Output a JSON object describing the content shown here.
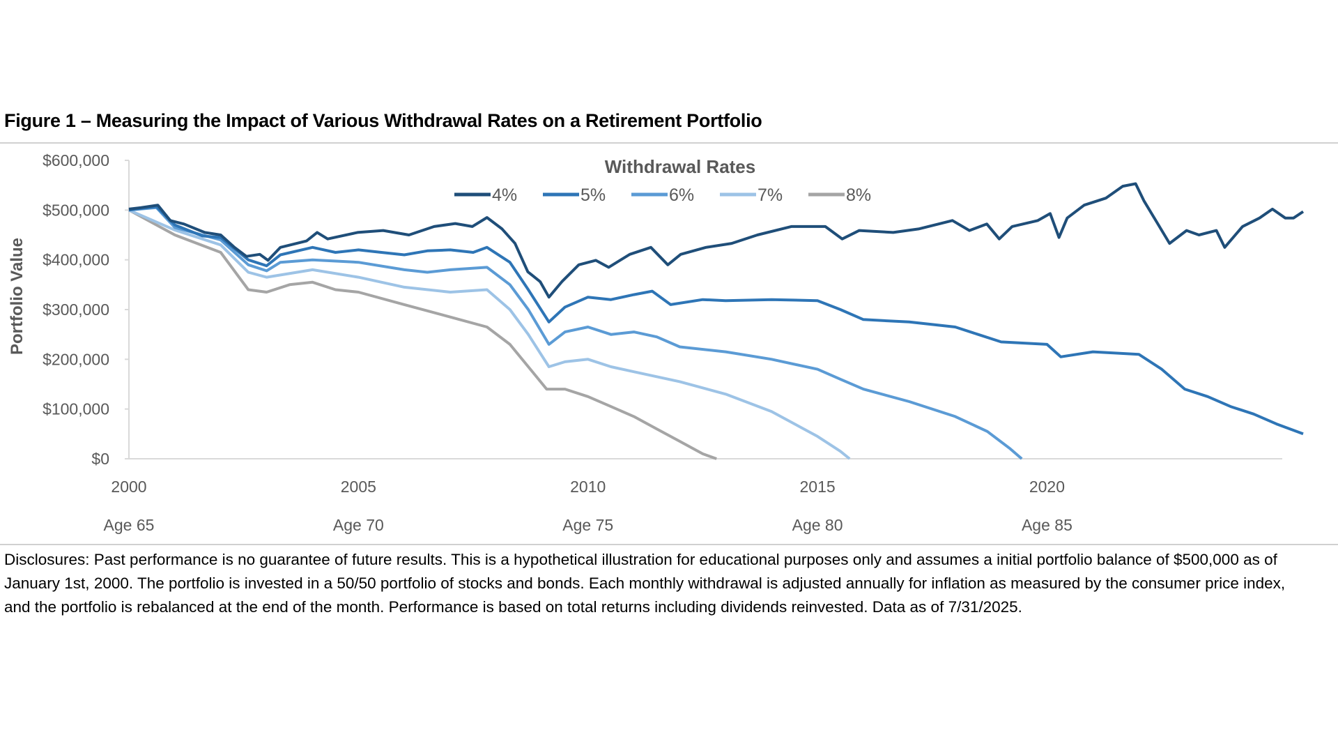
{
  "title": "Figure 1 – Measuring the Impact of Various Withdrawal Rates on a Retirement Portfolio",
  "disclosures": "Disclosures: Past performance is no guarantee of future results. This is a hypothetical illustration for educational purposes only and assumes a initial portfolio balance of $500,000 as of January 1st, 2000. The portfolio is invested in a 50/50 portfolio of stocks and bonds. Each monthly withdrawal is adjusted annually for inflation as measured by the consumer price index, and the portfolio is rebalanced at the end of the month. Performance is based on total returns including dividends reinvested. Data as of 7/31/2025.",
  "chart_data": {
    "type": "line",
    "ylabel": "Portfolio Value",
    "legend_title": "Withdrawal Rates",
    "legend_placement": "top-center",
    "grid": false,
    "xlim": [
      2000,
      2025.58
    ],
    "ylim": [
      0,
      600000
    ],
    "y_ticks": [
      "$0",
      "$100,000",
      "$200,000",
      "$300,000",
      "$400,000",
      "$500,000",
      "$600,000"
    ],
    "x_ticks": [
      {
        "value": 2000,
        "label": "2000",
        "age": "Age 65"
      },
      {
        "value": 2005,
        "label": "2005",
        "age": "Age 70"
      },
      {
        "value": 2010,
        "label": "2010",
        "age": "Age 75"
      },
      {
        "value": 2015,
        "label": "2015",
        "age": "Age 80"
      },
      {
        "value": 2020,
        "label": "2020",
        "age": "Age 85"
      }
    ],
    "series": [
      {
        "name": "4%",
        "color": "#1f4e79",
        "points": [
          [
            2000,
            502000
          ],
          [
            2000.26,
            505000
          ],
          [
            2000.63,
            510000
          ],
          [
            2000.9,
            479000
          ],
          [
            2001.2,
            472000
          ],
          [
            2001.65,
            455000
          ],
          [
            2002,
            450000
          ],
          [
            2002.3,
            425000
          ],
          [
            2002.56,
            407000
          ],
          [
            2002.85,
            411000
          ],
          [
            2003.03,
            399000
          ],
          [
            2003.3,
            425000
          ],
          [
            2003.87,
            438000
          ],
          [
            2004.1,
            455000
          ],
          [
            2004.33,
            442000
          ],
          [
            2004.98,
            455000
          ],
          [
            2005.54,
            459000
          ],
          [
            2006.1,
            450000
          ],
          [
            2006.65,
            467000
          ],
          [
            2007.11,
            473000
          ],
          [
            2007.48,
            467000
          ],
          [
            2007.8,
            485000
          ],
          [
            2008.13,
            462000
          ],
          [
            2008.41,
            433000
          ],
          [
            2008.69,
            376000
          ],
          [
            2008.96,
            356000
          ],
          [
            2009.15,
            325000
          ],
          [
            2009.43,
            356000
          ],
          [
            2009.8,
            390000
          ],
          [
            2010.17,
            399000
          ],
          [
            2010.45,
            385000
          ],
          [
            2010.91,
            411000
          ],
          [
            2011.37,
            425000
          ],
          [
            2011.74,
            390000
          ],
          [
            2012.02,
            411000
          ],
          [
            2012.57,
            425000
          ],
          [
            2013.13,
            433000
          ],
          [
            2013.69,
            450000
          ],
          [
            2014.43,
            467000
          ],
          [
            2015.17,
            467000
          ],
          [
            2015.54,
            442000
          ],
          [
            2015.91,
            459000
          ],
          [
            2016.65,
            455000
          ],
          [
            2017.2,
            462000
          ],
          [
            2017.94,
            479000
          ],
          [
            2018.31,
            459000
          ],
          [
            2018.69,
            472000
          ],
          [
            2018.96,
            442000
          ],
          [
            2019.24,
            467000
          ],
          [
            2019.8,
            479000
          ],
          [
            2020.07,
            493000
          ],
          [
            2020.26,
            445000
          ],
          [
            2020.44,
            484000
          ],
          [
            2020.81,
            510000
          ],
          [
            2021.28,
            524000
          ],
          [
            2021.65,
            548000
          ],
          [
            2021.93,
            553000
          ],
          [
            2022.11,
            519000
          ],
          [
            2022.39,
            476000
          ],
          [
            2022.67,
            433000
          ],
          [
            2023.04,
            459000
          ],
          [
            2023.31,
            450000
          ],
          [
            2023.69,
            459000
          ],
          [
            2023.87,
            425000
          ],
          [
            2024.26,
            467000
          ],
          [
            2024.63,
            484000
          ],
          [
            2024.91,
            502000
          ],
          [
            2025.19,
            484000
          ],
          [
            2025.37,
            484000
          ],
          [
            2025.58,
            497000
          ]
        ]
      },
      {
        "name": "5%",
        "color": "#2e75b6",
        "points": [
          [
            2000,
            500000
          ],
          [
            2000.6,
            507000
          ],
          [
            2001,
            470000
          ],
          [
            2001.6,
            448000
          ],
          [
            2002,
            445000
          ],
          [
            2002.6,
            400000
          ],
          [
            2003,
            388000
          ],
          [
            2003.3,
            410000
          ],
          [
            2004,
            425000
          ],
          [
            2004.5,
            415000
          ],
          [
            2005,
            420000
          ],
          [
            2005.5,
            415000
          ],
          [
            2006,
            410000
          ],
          [
            2006.5,
            418000
          ],
          [
            2007,
            420000
          ],
          [
            2007.5,
            415000
          ],
          [
            2007.8,
            425000
          ],
          [
            2008.3,
            395000
          ],
          [
            2008.7,
            340000
          ],
          [
            2009.15,
            275000
          ],
          [
            2009.5,
            305000
          ],
          [
            2010,
            325000
          ],
          [
            2010.5,
            320000
          ],
          [
            2011,
            330000
          ],
          [
            2011.4,
            337000
          ],
          [
            2011.8,
            310000
          ],
          [
            2012.5,
            320000
          ],
          [
            2013,
            318000
          ],
          [
            2014,
            320000
          ],
          [
            2015,
            318000
          ],
          [
            2015.5,
            300000
          ],
          [
            2016,
            280000
          ],
          [
            2017,
            275000
          ],
          [
            2018,
            265000
          ],
          [
            2018.5,
            250000
          ],
          [
            2019,
            235000
          ],
          [
            2020,
            230000
          ],
          [
            2020.3,
            205000
          ],
          [
            2021,
            215000
          ],
          [
            2022,
            210000
          ],
          [
            2022.5,
            180000
          ],
          [
            2023,
            140000
          ],
          [
            2023.5,
            125000
          ],
          [
            2024,
            105000
          ],
          [
            2024.5,
            90000
          ],
          [
            2025,
            70000
          ],
          [
            2025.58,
            50000
          ]
        ]
      },
      {
        "name": "6%",
        "color": "#5b9bd5",
        "points": [
          [
            2000,
            500000
          ],
          [
            2000.6,
            505000
          ],
          [
            2001,
            465000
          ],
          [
            2002,
            440000
          ],
          [
            2002.6,
            390000
          ],
          [
            2003,
            378000
          ],
          [
            2003.3,
            395000
          ],
          [
            2004,
            400000
          ],
          [
            2005,
            395000
          ],
          [
            2006,
            380000
          ],
          [
            2006.5,
            375000
          ],
          [
            2007,
            380000
          ],
          [
            2007.8,
            385000
          ],
          [
            2008.3,
            350000
          ],
          [
            2008.7,
            300000
          ],
          [
            2009.15,
            230000
          ],
          [
            2009.5,
            255000
          ],
          [
            2010,
            265000
          ],
          [
            2010.5,
            250000
          ],
          [
            2011,
            255000
          ],
          [
            2011.5,
            245000
          ],
          [
            2012,
            225000
          ],
          [
            2013,
            215000
          ],
          [
            2014,
            200000
          ],
          [
            2015,
            180000
          ],
          [
            2015.5,
            160000
          ],
          [
            2016,
            140000
          ],
          [
            2017,
            115000
          ],
          [
            2018,
            85000
          ],
          [
            2018.7,
            55000
          ],
          [
            2019.2,
            20000
          ],
          [
            2019.45,
            0
          ]
        ]
      },
      {
        "name": "7%",
        "color": "#9dc3e6",
        "points": [
          [
            2000,
            500000
          ],
          [
            2001,
            460000
          ],
          [
            2002,
            430000
          ],
          [
            2002.6,
            375000
          ],
          [
            2003,
            365000
          ],
          [
            2004,
            380000
          ],
          [
            2005,
            365000
          ],
          [
            2006,
            345000
          ],
          [
            2007,
            335000
          ],
          [
            2007.8,
            340000
          ],
          [
            2008.3,
            300000
          ],
          [
            2008.7,
            250000
          ],
          [
            2009.15,
            185000
          ],
          [
            2009.5,
            195000
          ],
          [
            2010,
            200000
          ],
          [
            2010.5,
            185000
          ],
          [
            2011,
            175000
          ],
          [
            2012,
            155000
          ],
          [
            2013,
            130000
          ],
          [
            2014,
            95000
          ],
          [
            2015,
            45000
          ],
          [
            2015.5,
            15000
          ],
          [
            2015.7,
            0
          ]
        ]
      },
      {
        "name": "8%",
        "color": "#a5a5a5",
        "points": [
          [
            2000,
            500000
          ],
          [
            2001,
            450000
          ],
          [
            2002,
            415000
          ],
          [
            2002.6,
            340000
          ],
          [
            2003,
            335000
          ],
          [
            2003.5,
            350000
          ],
          [
            2004,
            355000
          ],
          [
            2004.5,
            340000
          ],
          [
            2005,
            335000
          ],
          [
            2006,
            310000
          ],
          [
            2007,
            285000
          ],
          [
            2007.8,
            265000
          ],
          [
            2008.3,
            230000
          ],
          [
            2008.7,
            185000
          ],
          [
            2009.1,
            140000
          ],
          [
            2009.5,
            140000
          ],
          [
            2010,
            125000
          ],
          [
            2010.5,
            105000
          ],
          [
            2011,
            85000
          ],
          [
            2011.5,
            60000
          ],
          [
            2012,
            35000
          ],
          [
            2012.5,
            10000
          ],
          [
            2012.8,
            0
          ]
        ]
      }
    ]
  }
}
